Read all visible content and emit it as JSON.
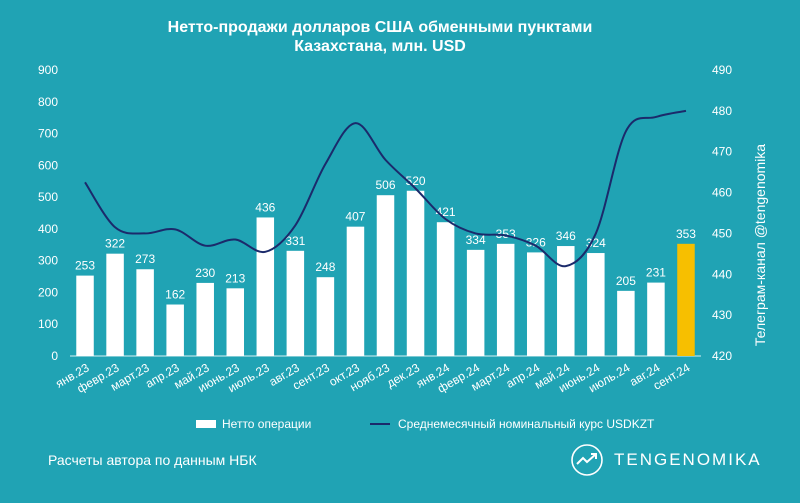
{
  "chart_data": {
    "type": "bar",
    "title_lines": [
      "Нетто-продажи долларов США обменными пунктами",
      "Казахстана, млн. USD"
    ],
    "categories": [
      "янв.23",
      "февр.23",
      "март.23",
      "апр.23",
      "май.23",
      "июнь.23",
      "июль.23",
      "авг.23",
      "сент.23",
      "окт.23",
      "нояб.23",
      "дек.23",
      "янв.24",
      "февр.24",
      "март.24",
      "апр.24",
      "май.24",
      "июнь.24",
      "июль.24",
      "авг.24",
      "сент.24"
    ],
    "series": [
      {
        "name": "Нетто операции",
        "type": "bar",
        "axis": "left",
        "values": [
          253,
          322,
          273,
          162,
          230,
          213,
          436,
          331,
          248,
          407,
          506,
          520,
          421,
          334,
          353,
          326,
          346,
          324,
          205,
          231,
          353
        ],
        "highlight_index": 20
      },
      {
        "name": "Среднемесячный номинальный курс USDKZT",
        "type": "line",
        "axis": "right",
        "values": [
          462.5,
          451.5,
          450,
          451,
          447,
          448.5,
          445.5,
          452,
          467,
          477,
          468,
          461,
          453.5,
          450,
          449.5,
          447,
          442,
          450,
          475,
          478.5,
          480
        ]
      }
    ],
    "ylim_left": [
      0,
      900
    ],
    "ylim_right": [
      420,
      490
    ],
    "yticks_left": [
      "0",
      "100",
      "200",
      "300",
      "400",
      "500",
      "600",
      "700",
      "800",
      "900"
    ],
    "yticks_right": [
      "420",
      "430",
      "440",
      "450",
      "460",
      "470",
      "480",
      "490"
    ],
    "right_axis_label": "Телеграм-канал @tengenomika",
    "colors": {
      "background": "#20a3b4",
      "bar": "#ffffff",
      "bar_highlight": "#f7bf00",
      "line": "#1b2a6b",
      "text": "#ffffff"
    },
    "grid": false,
    "legend_position": "bottom"
  },
  "footer": {
    "note": "Расчеты автора по данным НБК",
    "brand": "TENGENOMIKA",
    "brand_icon": "chart-line-icon"
  }
}
